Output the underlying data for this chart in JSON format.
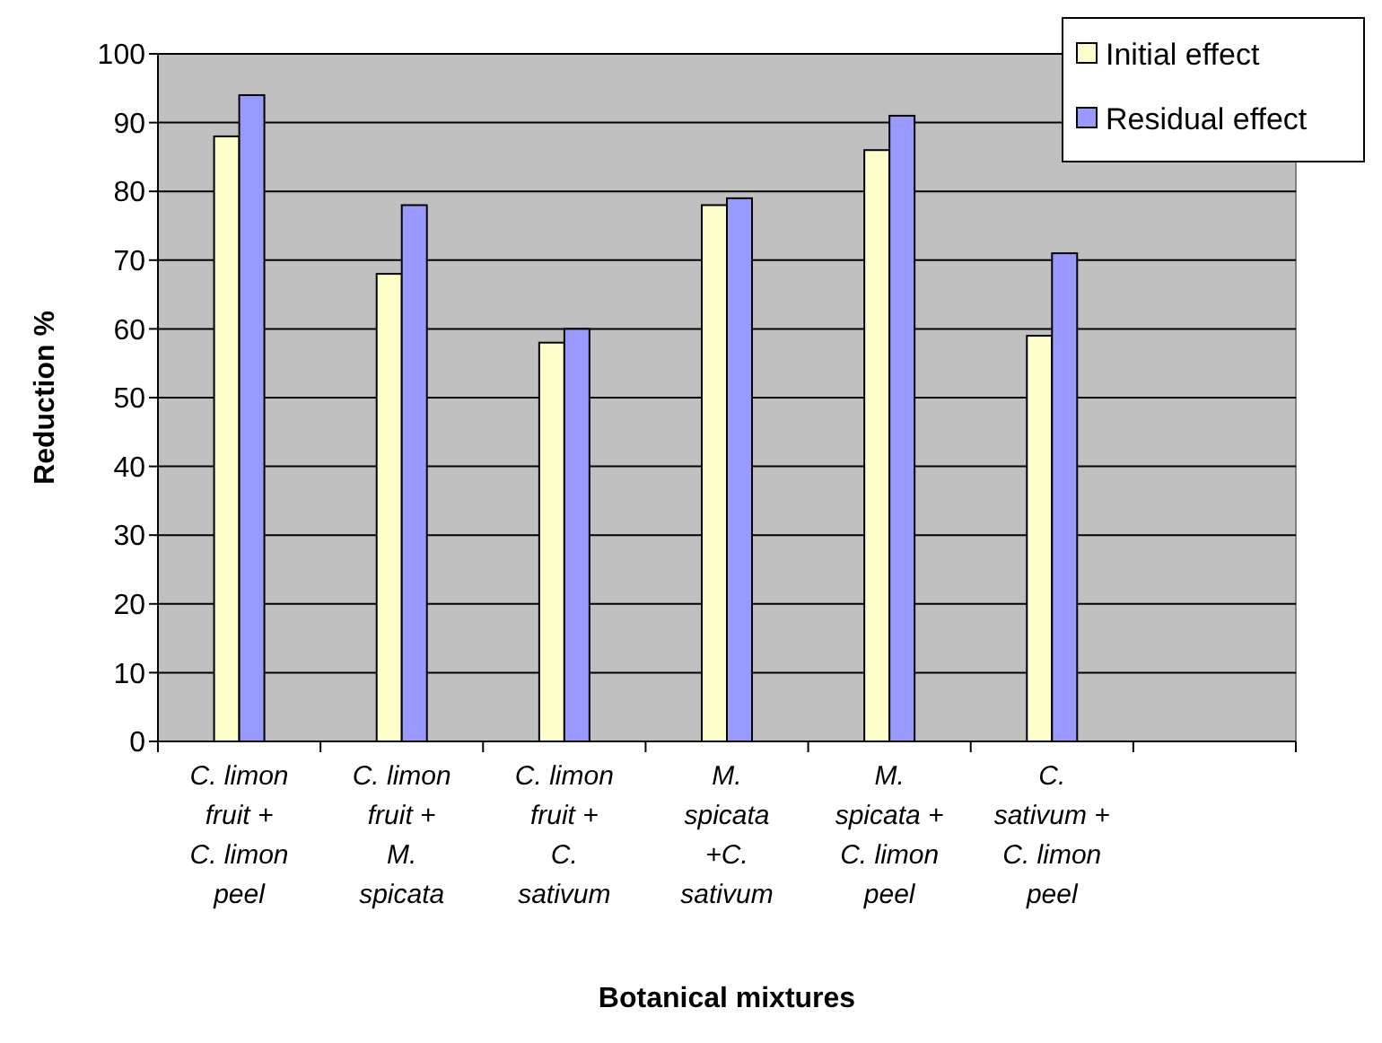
{
  "chart_data": {
    "type": "bar",
    "xlabel": "Botanical mixtures",
    "ylabel": "Reduction %",
    "categories": [
      "C. limon fruit + C. limon peel",
      "C. limon fruit + M. spicata",
      "C. limon fruit + C. sativum",
      "M. spicata +C. sativum",
      "M. spicata + C. limon peel",
      "C. sativum + C. limon peel"
    ],
    "series": [
      {
        "name": "Initial effect",
        "color": "#ffffcc",
        "values": [
          88,
          68,
          58,
          78,
          86,
          59
        ]
      },
      {
        "name": "Residual effect",
        "color": "#9999ff",
        "values": [
          94,
          78,
          60,
          79,
          91,
          71
        ]
      }
    ],
    "ylim": [
      0,
      100
    ],
    "yticks": [
      0,
      10,
      20,
      30,
      40,
      50,
      60,
      70,
      80,
      90,
      100
    ],
    "grid": "y",
    "legend": "top right"
  }
}
